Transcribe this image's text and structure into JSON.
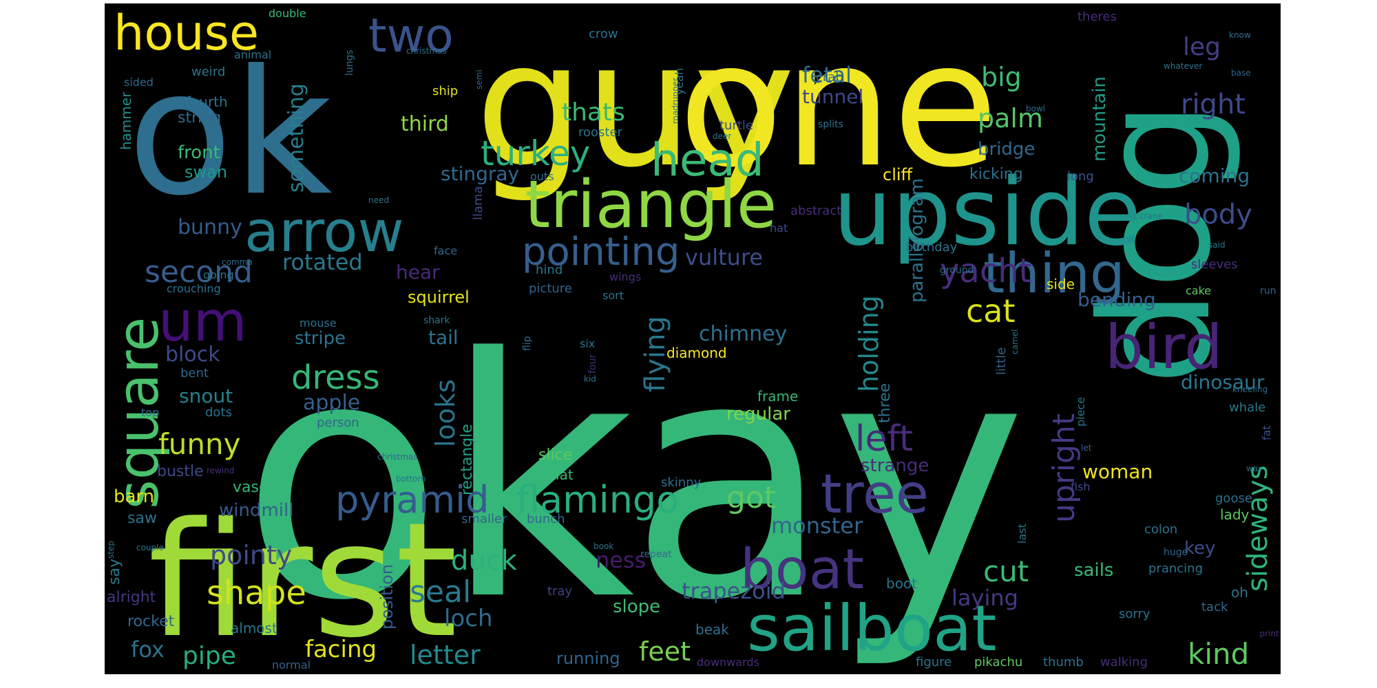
{
  "background": "#000000",
  "words": [
    {
      "text": "okay",
      "color": "#35b779"
    },
    {
      "text": "guy",
      "color": "#e1e01b"
    },
    {
      "text": "one",
      "color": "#f0e622"
    },
    {
      "text": "ok",
      "color": "#2e6e8e"
    },
    {
      "text": "first",
      "color": "#a0da39"
    },
    {
      "text": "dog",
      "color": "#1fa187"
    },
    {
      "text": "upside",
      "color": "#1f948c"
    },
    {
      "text": "triangle",
      "color": "#8fd744"
    },
    {
      "text": "sailboat",
      "color": "#20a386"
    },
    {
      "text": "arrow",
      "color": "#277f8e"
    },
    {
      "text": "square",
      "color": "#4ac16d"
    },
    {
      "text": "house",
      "color": "#f8e621"
    },
    {
      "text": "two",
      "color": "#3b528b"
    },
    {
      "text": "bird",
      "color": "#482475"
    },
    {
      "text": "thing",
      "color": "#31688e"
    },
    {
      "text": "boat",
      "color": "#46337e"
    },
    {
      "text": "tree",
      "color": "#433e85"
    },
    {
      "text": "head",
      "color": "#3aba76"
    },
    {
      "text": "um",
      "color": "#440f76"
    },
    {
      "text": "turkey",
      "color": "#2ab07f"
    },
    {
      "text": "pointing",
      "color": "#355f8d"
    },
    {
      "text": "pyramid",
      "color": "#365c8d"
    },
    {
      "text": "flamingo",
      "color": "#29af7f"
    },
    {
      "text": "shape",
      "color": "#d2e21b"
    },
    {
      "text": "dress",
      "color": "#35b779"
    },
    {
      "text": "second",
      "color": "#365d8d"
    },
    {
      "text": "funny",
      "color": "#bddf26"
    },
    {
      "text": "left",
      "color": "#472c7a"
    },
    {
      "text": "sideways",
      "color": "#2fb47c"
    },
    {
      "text": "flying",
      "color": "#2a768e"
    },
    {
      "text": "yacht",
      "color": "#472d7b"
    },
    {
      "text": "cat",
      "color": "#d8e219"
    },
    {
      "text": "palm",
      "color": "#52c569"
    },
    {
      "text": "body",
      "color": "#3e4c8a"
    },
    {
      "text": "right",
      "color": "#3f4889"
    },
    {
      "text": "upright",
      "color": "#443983"
    },
    {
      "text": "looks",
      "color": "#2c728e"
    },
    {
      "text": "holding",
      "color": "#23888e"
    },
    {
      "text": "pointy",
      "color": "#3e4a89"
    },
    {
      "text": "duck",
      "color": "#2db27d"
    },
    {
      "text": "seal",
      "color": "#297a8e"
    },
    {
      "text": "got",
      "color": "#5ec962"
    },
    {
      "text": "cut",
      "color": "#3aba76"
    },
    {
      "text": "kind",
      "color": "#5ec962"
    },
    {
      "text": "feet",
      "color": "#7ad151"
    },
    {
      "text": "letter",
      "color": "#23898e"
    },
    {
      "text": "pipe",
      "color": "#28ae80"
    },
    {
      "text": "fox",
      "color": "#2c728e"
    },
    {
      "text": "facing",
      "color": "#e5e419"
    },
    {
      "text": "loch",
      "color": "#2f6c8e"
    },
    {
      "text": "monster",
      "color": "#32658e"
    },
    {
      "text": "trapezoid",
      "color": "#3b528b"
    },
    {
      "text": "laying",
      "color": "#443983"
    },
    {
      "text": "ness",
      "color": "#481b6d"
    },
    {
      "text": "rotated",
      "color": "#2a788e"
    },
    {
      "text": "vulture",
      "color": "#3d4e8a"
    },
    {
      "text": "chimney",
      "color": "#2d708e"
    },
    {
      "text": "apple",
      "color": "#355f8d"
    },
    {
      "text": "block",
      "color": "#3e4a89"
    },
    {
      "text": "bunny",
      "color": "#365c8d"
    },
    {
      "text": "snout",
      "color": "#26828e"
    },
    {
      "text": "stripe",
      "color": "#2c738e"
    },
    {
      "text": "tail",
      "color": "#2b748e"
    },
    {
      "text": "hear",
      "color": "#472c7a"
    },
    {
      "text": "squirrel",
      "color": "#e5e419"
    },
    {
      "text": "bending",
      "color": "#365d8d"
    },
    {
      "text": "dinosaur",
      "color": "#29798e"
    },
    {
      "text": "mountain",
      "color": "#1e9c89"
    },
    {
      "text": "parallelogram",
      "color": "#2c738e"
    },
    {
      "text": "big",
      "color": "#3dbc74"
    },
    {
      "text": "fetal",
      "color": "#2f6c8e"
    },
    {
      "text": "thats",
      "color": "#3aba76"
    },
    {
      "text": "third",
      "color": "#8fd744"
    },
    {
      "text": "stingray",
      "color": "#31688e"
    },
    {
      "text": "something",
      "color": "#277f8e"
    },
    {
      "text": "front",
      "color": "#3aba76"
    },
    {
      "text": "swan",
      "color": "#1e9b8a"
    },
    {
      "text": "string",
      "color": "#31688e"
    },
    {
      "text": "fourth",
      "color": "#2c738e"
    },
    {
      "text": "hammer",
      "color": "#21918c"
    },
    {
      "text": "leg",
      "color": "#433e85"
    },
    {
      "text": "bridge",
      "color": "#31688e"
    },
    {
      "text": "cliff",
      "color": "#fde725"
    },
    {
      "text": "kicking",
      "color": "#2c728e"
    },
    {
      "text": "coming",
      "color": "#2c738e"
    },
    {
      "text": "tunnel",
      "color": "#3f4889"
    },
    {
      "text": "strange",
      "color": "#472d7b"
    },
    {
      "text": "woman",
      "color": "#f1e51d"
    },
    {
      "text": "regular",
      "color": "#84d44b"
    },
    {
      "text": "frame",
      "color": "#35b779"
    },
    {
      "text": "three",
      "color": "#2a768e"
    },
    {
      "text": "rectangle",
      "color": "#20a386"
    },
    {
      "text": "position",
      "color": "#355f8d"
    },
    {
      "text": "running",
      "color": "#33638d"
    },
    {
      "text": "windmill",
      "color": "#365d8d"
    },
    {
      "text": "barn",
      "color": "#e5e419"
    },
    {
      "text": "bustle",
      "color": "#3f4889"
    },
    {
      "text": "saw",
      "color": "#2c738e"
    },
    {
      "text": "say",
      "color": "#2a788e"
    },
    {
      "text": "alright",
      "color": "#453882"
    },
    {
      "text": "rocket",
      "color": "#31688e"
    },
    {
      "text": "almost",
      "color": "#2a788e"
    },
    {
      "text": "vase",
      "color": "#35b779"
    },
    {
      "text": "slice",
      "color": "#5ec962"
    },
    {
      "text": "flat",
      "color": "#3aba76"
    },
    {
      "text": "skinny",
      "color": "#2d708e"
    },
    {
      "text": "bunch",
      "color": "#31688e"
    },
    {
      "text": "smaller",
      "color": "#33638d"
    },
    {
      "text": "slope",
      "color": "#3dbc74"
    },
    {
      "text": "beak",
      "color": "#2d708e"
    },
    {
      "text": "tray",
      "color": "#404387"
    },
    {
      "text": "boot",
      "color": "#2c728e"
    },
    {
      "text": "sails",
      "color": "#3aba76"
    },
    {
      "text": "prancing",
      "color": "#2c738e"
    },
    {
      "text": "oh",
      "color": "#2d708e"
    },
    {
      "text": "tack",
      "color": "#31688e"
    },
    {
      "text": "key",
      "color": "#3e4c8a"
    },
    {
      "text": "lady",
      "color": "#5ec962"
    },
    {
      "text": "goose",
      "color": "#2c728e"
    },
    {
      "text": "whale",
      "color": "#2a768e"
    },
    {
      "text": "fat",
      "color": "#3b528b"
    },
    {
      "text": "kneeling",
      "color": "#2d708e"
    },
    {
      "text": "colon",
      "color": "#2c738e"
    },
    {
      "text": "huge",
      "color": "#31688e"
    },
    {
      "text": "sorry",
      "color": "#2c728e"
    },
    {
      "text": "thumb",
      "color": "#2c738e"
    },
    {
      "text": "walking",
      "color": "#472d7b"
    },
    {
      "text": "pikachu",
      "color": "#5ec962"
    },
    {
      "text": "figure",
      "color": "#2a768e"
    },
    {
      "text": "last",
      "color": "#2c738e"
    },
    {
      "text": "fish",
      "color": "#3e4a89"
    },
    {
      "text": "piece",
      "color": "#2a768e"
    },
    {
      "text": "let",
      "color": "#31688e"
    },
    {
      "text": "little",
      "color": "#33638d"
    },
    {
      "text": "camel",
      "color": "#2c728e"
    },
    {
      "text": "cake",
      "color": "#5ec962"
    },
    {
      "text": "run",
      "color": "#33638d"
    },
    {
      "text": "sleeves",
      "color": "#472d7b"
    },
    {
      "text": "said",
      "color": "#2a768e"
    },
    {
      "text": "side",
      "color": "#e5e419"
    },
    {
      "text": "ground",
      "color": "#31688e"
    },
    {
      "text": "birthday",
      "color": "#2c738e"
    },
    {
      "text": "hat",
      "color": "#3e4a89"
    },
    {
      "text": "long",
      "color": "#3b528b"
    },
    {
      "text": "crane",
      "color": "#2c728e"
    },
    {
      "text": "abstract",
      "color": "#472d7b"
    },
    {
      "text": "deer",
      "color": "#2c738e"
    },
    {
      "text": "splits",
      "color": "#2d708e"
    },
    {
      "text": "turtle",
      "color": "#3e4a89"
    },
    {
      "text": "rooster",
      "color": "#2a768e"
    },
    {
      "text": "bowl",
      "color": "#2c738e"
    },
    {
      "text": "roadrunner",
      "color": "#2d708e"
    },
    {
      "text": "semi",
      "color": "#31688e"
    },
    {
      "text": "ship",
      "color": "#e5e419"
    },
    {
      "text": "yeah",
      "color": "#2a768e"
    },
    {
      "text": "crab",
      "color": "#31688e"
    },
    {
      "text": "crow",
      "color": "#2c738e"
    },
    {
      "text": "christmas",
      "color": "#2c728e"
    },
    {
      "text": "lungs",
      "color": "#2a768e"
    },
    {
      "text": "double",
      "color": "#3aba76"
    },
    {
      "text": "animal",
      "color": "#2c738e"
    },
    {
      "text": "sided",
      "color": "#31688e"
    },
    {
      "text": "weird",
      "color": "#2a768e"
    },
    {
      "text": "theres",
      "color": "#472d7b"
    },
    {
      "text": "whatever",
      "color": "#2c738e"
    },
    {
      "text": "know",
      "color": "#2d708e"
    },
    {
      "text": "base",
      "color": "#31688e"
    },
    {
      "text": "need",
      "color": "#2c738e"
    },
    {
      "text": "comma",
      "color": "#2d708e"
    },
    {
      "text": "going",
      "color": "#2a768e"
    },
    {
      "text": "face",
      "color": "#31688e"
    },
    {
      "text": "crouching",
      "color": "#2c728e"
    },
    {
      "text": "llama",
      "color": "#3e4a89"
    },
    {
      "text": "outs",
      "color": "#2c738e"
    },
    {
      "text": "hind",
      "color": "#2a768e"
    },
    {
      "text": "sort",
      "color": "#2c738e"
    },
    {
      "text": "picture",
      "color": "#33638d"
    },
    {
      "text": "wings",
      "color": "#472d7b"
    },
    {
      "text": "mouse",
      "color": "#2c728e"
    },
    {
      "text": "shark",
      "color": "#2c738e"
    },
    {
      "text": "flip",
      "color": "#2d708e"
    },
    {
      "text": "six",
      "color": "#2a768e"
    },
    {
      "text": "four",
      "color": "#472d7b"
    },
    {
      "text": "kid",
      "color": "#2c738e"
    },
    {
      "text": "diamond",
      "color": "#fde725"
    },
    {
      "text": "top",
      "color": "#2c738e"
    },
    {
      "text": "bent",
      "color": "#31688e"
    },
    {
      "text": "dots",
      "color": "#2a768e"
    },
    {
      "text": "person",
      "color": "#33638d"
    },
    {
      "text": "rewind",
      "color": "#472d7b"
    },
    {
      "text": "bottom",
      "color": "#2c738e"
    },
    {
      "text": "christmas",
      "color": "#31688e"
    },
    {
      "text": "couple",
      "color": "#2a768e"
    },
    {
      "text": "step",
      "color": "#2c738e"
    },
    {
      "text": "normal",
      "color": "#33638d"
    },
    {
      "text": "downwards",
      "color": "#472d7b"
    },
    {
      "text": "repeat",
      "color": "#31688e"
    },
    {
      "text": "book",
      "color": "#2c738e"
    },
    {
      "text": "print",
      "color": "#472d7b"
    },
    {
      "text": "way",
      "color": "#2d708e"
    }
  ]
}
